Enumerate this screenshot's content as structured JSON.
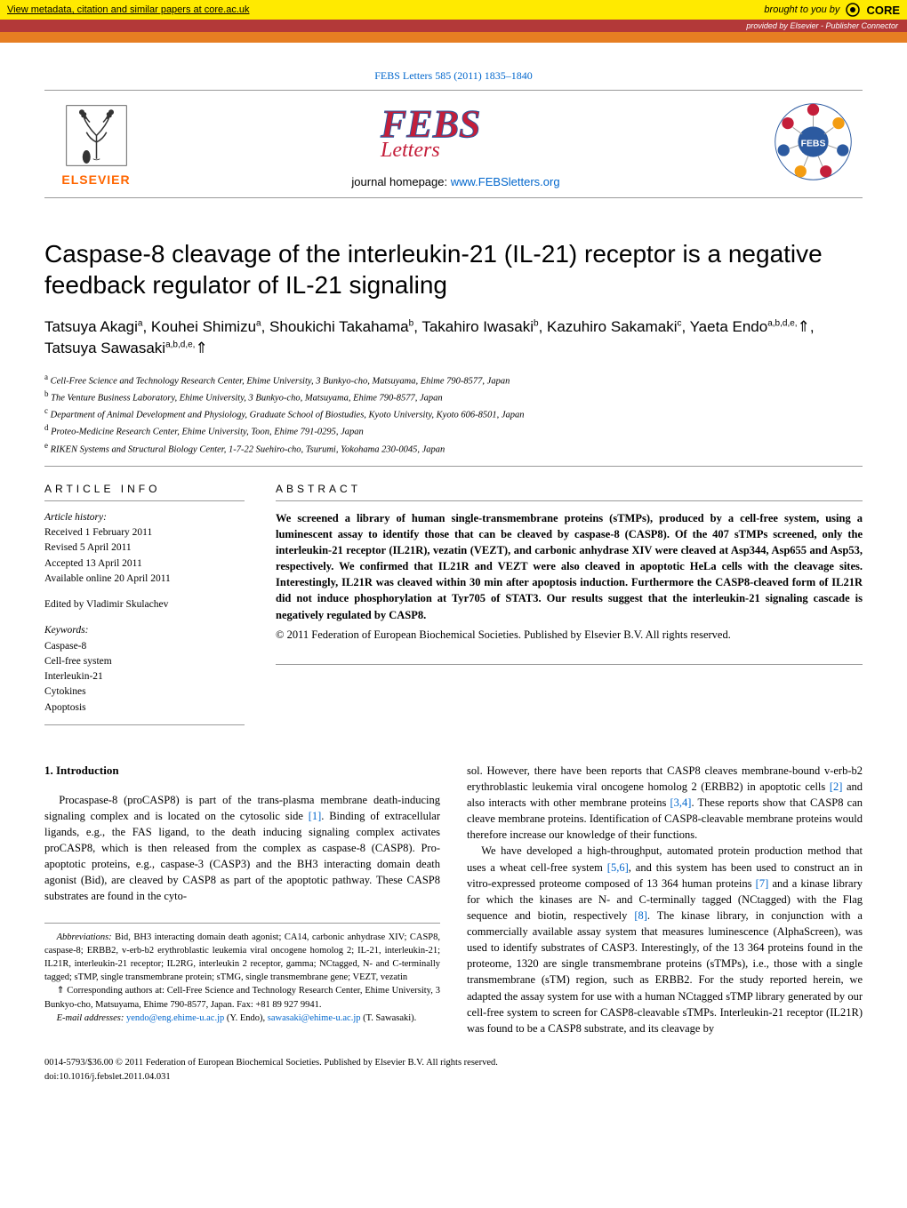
{
  "core_banner": {
    "left": "View metadata, citation and similar papers at core.ac.uk",
    "left_url": "core.ac.uk",
    "brought": "brought to you by",
    "brand": "CORE"
  },
  "provided_bar": {
    "prefix": "provided by ",
    "text": "Elsevier - Publisher Connector"
  },
  "journal_reference": "FEBS Letters 585 (2011) 1835–1840",
  "journal_homepage_label": "journal homepage: ",
  "journal_homepage_url": "www.FEBSletters.org",
  "elsevier_label": "ELSEVIER",
  "febs_center_label": "FEBS",
  "title": "Caspase-8 cleavage of the interleukin-21 (IL-21) receptor is a negative feedback regulator of IL-21 signaling",
  "authors_html": "Tatsuya Akagi<sup>a</sup>, Kouhei Shimizu<sup>a</sup>, Shoukichi Takahama<sup>b</sup>, Takahiro Iwasaki<sup>b</sup>, Kazuhiro Sakamaki<sup>c</sup>, Yaeta Endo<sup>a,b,d,e,</sup><span class='corr-star'>⇑</span>, Tatsuya Sawasaki<sup>a,b,d,e,</sup><span class='corr-star'>⇑</span>",
  "affiliations": [
    "<sup>a</sup> Cell-Free Science and Technology Research Center, Ehime University, 3 Bunkyo-cho, Matsuyama, Ehime 790-8577, Japan",
    "<sup>b</sup> The Venture Business Laboratory, Ehime University, 3 Bunkyo-cho, Matsuyama, Ehime 790-8577, Japan",
    "<sup>c</sup> Department of Animal Development and Physiology, Graduate School of Biostudies, Kyoto University, Kyoto 606-8501, Japan",
    "<sup>d</sup> Proteo-Medicine Research Center, Ehime University, Toon, Ehime 791-0295, Japan",
    "<sup>e</sup> RIKEN Systems and Structural Biology Center, 1-7-22 Suehiro-cho, Tsurumi, Yokohama 230-0045, Japan"
  ],
  "article_info_heading": "ARTICLE INFO",
  "abstract_heading": "ABSTRACT",
  "history_label": "Article history:",
  "history": [
    "Received 1 February 2011",
    "Revised 5 April 2011",
    "Accepted 13 April 2011",
    "Available online 20 April 2011"
  ],
  "edited_by": "Edited by Vladimir Skulachev",
  "keywords_label": "Keywords:",
  "keywords": [
    "Caspase-8",
    "Cell-free system",
    "Interleukin-21",
    "Cytokines",
    "Apoptosis"
  ],
  "abstract": "We screened a library of human single-transmembrane proteins (sTMPs), produced by a cell-free system, using a luminescent assay to identify those that can be cleaved by caspase-8 (CASP8). Of the 407 sTMPs screened, only the interleukin-21 receptor (IL21R), vezatin (VEZT), and carbonic anhydrase XIV were cleaved at Asp344, Asp655 and Asp53, respectively. We confirmed that IL21R and VEZT were also cleaved in apoptotic HeLa cells with the cleavage sites. Interestingly, IL21R was cleaved within 30 min after apoptosis induction. Furthermore the CASP8-cleaved form of IL21R did not induce phosphorylation at Tyr705 of STAT3. Our results suggest that the interleukin-21 signaling cascade is negatively regulated by CASP8.",
  "abstract_copyright": "© 2011 Federation of European Biochemical Societies. Published by Elsevier B.V. All rights reserved.",
  "intro_heading": "1. Introduction",
  "intro_left": "Procaspase-8 (proCASP8) is part of the trans-plasma membrane death-inducing signaling complex and is located on the cytosolic side <a class='ref-link' data-interactable='true' data-name='citation-link'>[1]</a>. Binding of extracellular ligands, e.g., the FAS ligand, to the death inducing signaling complex activates proCASP8, which is then released from the complex as caspase-8 (CASP8). Pro-apoptotic proteins, e.g., caspase-3 (CASP3) and the BH3 interacting domain death agonist (Bid), are cleaved by CASP8 as part of the apoptotic pathway. These CASP8 substrates are found in the cyto-",
  "intro_right": "sol. However, there have been reports that CASP8 cleaves membrane-bound v-erb-b2 erythroblastic leukemia viral oncogene homolog 2 (ERBB2) in apoptotic cells <a class='ref-link' data-interactable='true' data-name='citation-link'>[2]</a> and also interacts with other membrane proteins <a class='ref-link' data-interactable='true' data-name='citation-link'>[3,4]</a>. These reports show that CASP8 can cleave membrane proteins. Identification of CASP8-cleavable membrane proteins would therefore increase our knowledge of their functions.",
  "intro_right_p2": "We have developed a high-throughput, automated protein production method that uses a wheat cell-free system <a class='ref-link' data-interactable='true' data-name='citation-link'>[5,6]</a>, and this system has been used to construct an in vitro-expressed proteome composed of 13 364 human proteins <a class='ref-link' data-interactable='true' data-name='citation-link'>[7]</a> and a kinase library for which the kinases are N- and C-terminally tagged (NCtagged) with the Flag sequence and biotin, respectively <a class='ref-link' data-interactable='true' data-name='citation-link'>[8]</a>. The kinase library, in conjunction with a commercially available assay system that measures luminescence (AlphaScreen), was used to identify substrates of CASP3. Interestingly, of the 13 364 proteins found in the proteome, 1320 are single transmembrane proteins (sTMPs), i.e., those with a single transmembrane (sTM) region, such as ERBB2. For the study reported herein, we adapted the assay system for use with a human NCtagged sTMP library generated by our cell-free system to screen for CASP8-cleavable sTMPs. Interleukin-21 receptor (IL21R) was found to be a CASP8 substrate, and its cleavage by",
  "fn_abbrev_label": "Abbreviations:",
  "fn_abbrev": " Bid, BH3 interacting domain death agonist; CA14, carbonic anhydrase XIV; CASP8, caspase-8; ERBB2, v-erb-b2 erythroblastic leukemia viral oncogene homolog 2; IL-21, interleukin-21; IL21R, interleukin-21 receptor; IL2RG, interleukin 2 receptor, gamma; NCtagged, N- and C-terminally tagged; sTMP, single transmembrane protein; sTMG, single transmembrane gene; VEZT, vezatin",
  "fn_corr": "⇑ Corresponding authors at: Cell-Free Science and Technology Research Center, Ehime University, 3 Bunkyo-cho, Matsuyama, Ehime 790-8577, Japan. Fax: +81 89 927 9941.",
  "fn_email_label": "E-mail addresses:",
  "fn_email_1": "yendo@eng.ehime-u.ac.jp",
  "fn_email_1_who": " (Y. Endo), ",
  "fn_email_2": "sawasaki@ehime-u.ac.jp",
  "fn_email_2_who": " (T. Sawasaki).",
  "footer_line1": "0014-5793/$36.00 © 2011 Federation of European Biochemical Societies. Published by Elsevier B.V. All rights reserved.",
  "footer_line2": "doi:10.1016/j.febslet.2011.04.031",
  "colors": {
    "core_yellow": "#ffea00",
    "provided_red": "#b33939",
    "orange": "#e67e22",
    "link_blue": "#0066cc",
    "elsevier_orange": "#ff6600",
    "febs_red": "#c41e3a",
    "febs_logo_blue": "#2c5aa0"
  }
}
